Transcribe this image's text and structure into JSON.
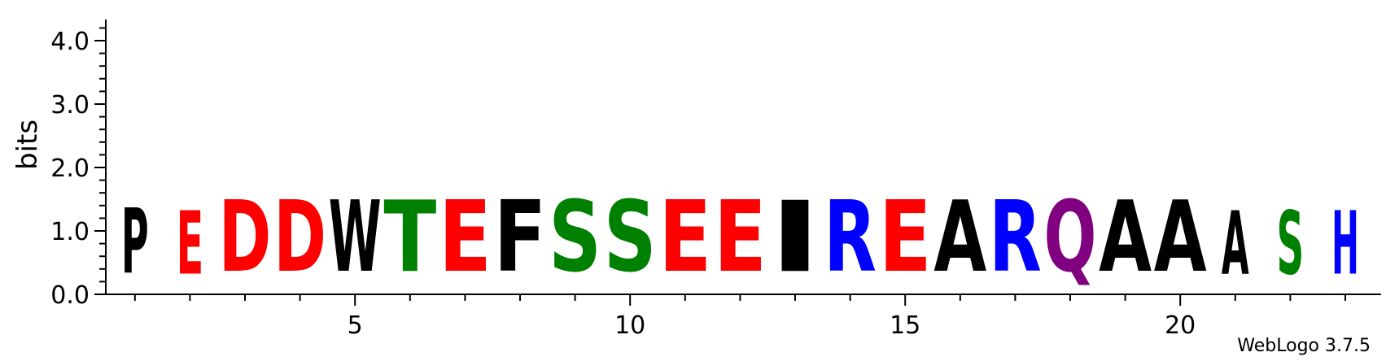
{
  "chart_data": {
    "type": "sequence-logo",
    "ylabel": "bits",
    "ylim": [
      0,
      4.3
    ],
    "y_ticks": [
      {
        "value": 0,
        "label": "0.0"
      },
      {
        "value": 1,
        "label": "1.0"
      },
      {
        "value": 2,
        "label": "2.0"
      },
      {
        "value": 3,
        "label": "3.0"
      },
      {
        "value": 4,
        "label": "4.0"
      }
    ],
    "x_ticks": [
      {
        "value": 5,
        "label": "5"
      },
      {
        "value": 10,
        "label": "10"
      },
      {
        "value": 15,
        "label": "15"
      },
      {
        "value": 20,
        "label": "20"
      }
    ],
    "positions": [
      {
        "pos": 1,
        "letter": "P",
        "bits": 1.65,
        "color": "#000000"
      },
      {
        "pos": 2,
        "letter": "E",
        "bits": 1.6,
        "color": "#ff0000"
      },
      {
        "pos": 3,
        "letter": "D",
        "bits": 1.8,
        "color": "#ff0000"
      },
      {
        "pos": 4,
        "letter": "D",
        "bits": 1.8,
        "color": "#ff0000"
      },
      {
        "pos": 5,
        "letter": "W",
        "bits": 1.8,
        "color": "#000000"
      },
      {
        "pos": 6,
        "letter": "T",
        "bits": 1.8,
        "color": "#008000"
      },
      {
        "pos": 7,
        "letter": "E",
        "bits": 1.8,
        "color": "#ff0000"
      },
      {
        "pos": 8,
        "letter": "F",
        "bits": 1.8,
        "color": "#000000"
      },
      {
        "pos": 9,
        "letter": "S",
        "bits": 1.8,
        "color": "#008000"
      },
      {
        "pos": 10,
        "letter": "S",
        "bits": 1.8,
        "color": "#008000"
      },
      {
        "pos": 11,
        "letter": "E",
        "bits": 1.8,
        "color": "#ff0000"
      },
      {
        "pos": 12,
        "letter": "E",
        "bits": 1.8,
        "color": "#ff0000"
      },
      {
        "pos": 13,
        "letter": "I",
        "bits": 1.8,
        "color": "#000000"
      },
      {
        "pos": 14,
        "letter": "R",
        "bits": 1.8,
        "color": "#0000ff"
      },
      {
        "pos": 15,
        "letter": "E",
        "bits": 1.8,
        "color": "#ff0000"
      },
      {
        "pos": 16,
        "letter": "A",
        "bits": 1.8,
        "color": "#000000"
      },
      {
        "pos": 17,
        "letter": "R",
        "bits": 1.8,
        "color": "#0000ff"
      },
      {
        "pos": 18,
        "letter": "Q",
        "bits": 1.8,
        "color": "#800080"
      },
      {
        "pos": 19,
        "letter": "A",
        "bits": 1.8,
        "color": "#000000"
      },
      {
        "pos": 20,
        "letter": "A",
        "bits": 1.8,
        "color": "#000000"
      },
      {
        "pos": 21,
        "letter": "A",
        "bits": 1.6,
        "color": "#000000"
      },
      {
        "pos": 22,
        "letter": "S",
        "bits": 1.6,
        "color": "#008000"
      },
      {
        "pos": 23,
        "letter": "H",
        "bits": 1.6,
        "color": "#0000ff"
      }
    ],
    "grid": false
  },
  "footer": {
    "credit": "WebLogo 3.7.5"
  }
}
